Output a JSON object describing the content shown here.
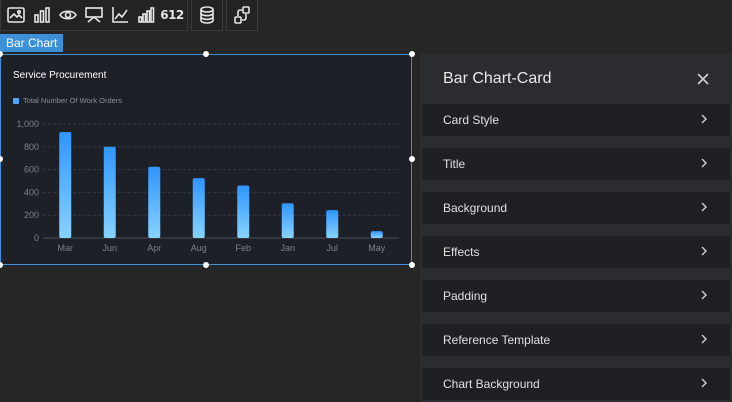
{
  "toolbar": {
    "group1": [
      {
        "icon": "image-card-icon"
      },
      {
        "icon": "bar-chart-icon"
      },
      {
        "icon": "eye-target-icon"
      },
      {
        "icon": "display-board-icon"
      },
      {
        "icon": "line-chart-icon"
      },
      {
        "icon": "stepped-bar-icon"
      },
      {
        "icon": "number-icon",
        "text": "612"
      }
    ],
    "group2": [
      {
        "icon": "database-icon"
      }
    ],
    "group3": [
      {
        "icon": "swap-link-icon"
      }
    ]
  },
  "selection_tag": "Bar Chart",
  "card": {
    "title": "Service Procurement",
    "legend": "Total Number Of Work Orders",
    "accent": "#4aa8ff"
  },
  "chart_data": {
    "type": "bar",
    "title": "Service Procurement",
    "categories": [
      "Mar",
      "Jun",
      "Apr",
      "Aug",
      "Feb",
      "Jan",
      "Jul",
      "May"
    ],
    "series": [
      {
        "name": "Total Number Of Work Orders",
        "values": [
          930,
          800,
          625,
          525,
          460,
          305,
          245,
          60
        ]
      }
    ],
    "y_ticks": [
      "0",
      "200",
      "400",
      "600",
      "800",
      "1,000"
    ],
    "ylim": [
      0,
      1000
    ],
    "grid": true,
    "legend_position": "top-left"
  },
  "panel": {
    "title": "Bar Chart-Card",
    "sections": [
      "Card Style",
      "Title",
      "Background",
      "Effects",
      "Padding",
      "Reference Template",
      "Chart Background"
    ]
  }
}
